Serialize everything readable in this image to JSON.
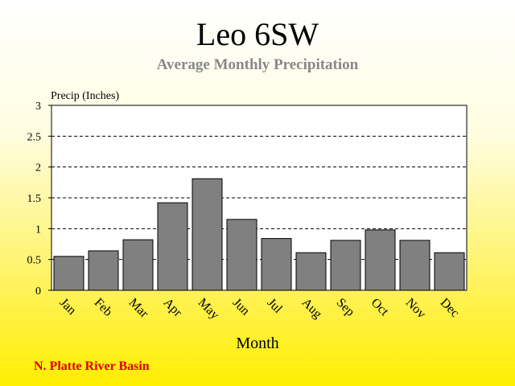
{
  "chart_data": {
    "type": "bar",
    "title": "Leo 6SW",
    "subtitle": "Average Monthly Precipitation",
    "ylabel": "Precip (Inches)",
    "xlabel": "Month",
    "categories": [
      "Jan",
      "Feb",
      "Mar",
      "Apr",
      "May",
      "Jun",
      "Jul",
      "Aug",
      "Sep",
      "Oct",
      "Nov",
      "Dec"
    ],
    "values": [
      0.55,
      0.64,
      0.82,
      1.42,
      1.81,
      1.15,
      0.84,
      0.61,
      0.81,
      0.98,
      0.81,
      0.61
    ],
    "ylim": [
      0,
      3
    ],
    "yticks": [
      "0",
      "0.5",
      "1",
      "1.5",
      "2",
      "2.5",
      "3"
    ],
    "ytick_values": [
      0,
      0.5,
      1,
      1.5,
      2,
      2.5,
      3
    ],
    "grid": "horizontal-dashed",
    "bar_color": "#808080",
    "footer": "N. Platte River Basin",
    "footer_color": "#dd0000"
  }
}
